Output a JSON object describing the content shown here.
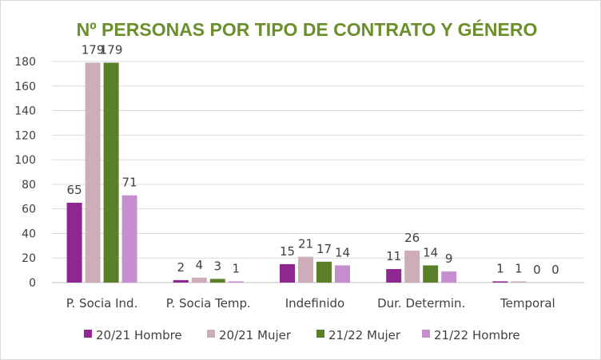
{
  "chart_data": {
    "type": "bar",
    "title": "Nº PERSONAS POR TIPO DE CONTRATO Y GÉNERO",
    "title_color": "#6a8f2c",
    "categories": [
      "P. Socia Ind.",
      "P. Socia Temp.",
      "Indefinido",
      "Dur. Determin.",
      "Temporal"
    ],
    "series": [
      {
        "name": "20/21 Hombre",
        "color": "#8e278f",
        "values": [
          65,
          2,
          15,
          11,
          1
        ]
      },
      {
        "name": "20/21 Mujer",
        "color": "#ccadb9",
        "values": [
          179,
          4,
          21,
          26,
          1
        ]
      },
      {
        "name": "21/22 Mujer",
        "color": "#5b7f28",
        "values": [
          179,
          3,
          17,
          14,
          0
        ]
      },
      {
        "name": "21/22 Hombre",
        "color": "#c48fcc",
        "values": [
          71,
          1,
          14,
          9,
          0
        ]
      }
    ],
    "ylim": [
      0,
      180
    ],
    "yticks": [
      0,
      20,
      40,
      60,
      80,
      100,
      120,
      140,
      160,
      180
    ],
    "grid": true,
    "legend_position": "bottom"
  }
}
